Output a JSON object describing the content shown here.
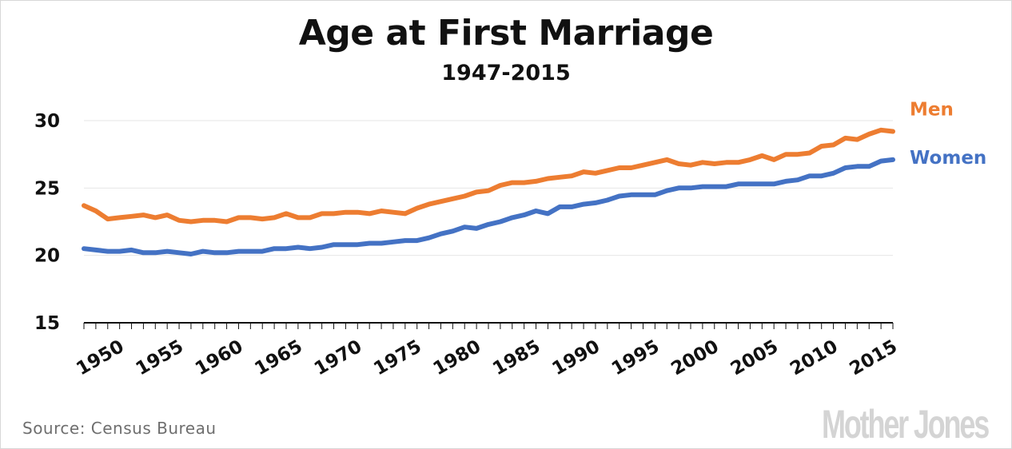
{
  "header": {
    "title": "Age at First Marriage",
    "subtitle": "1947-2015"
  },
  "footer": {
    "source": "Source: Census Bureau",
    "logo": "Mother Jones"
  },
  "colors": {
    "men": "#ED7D31",
    "women": "#4472C4",
    "gridline": "#e6e6e6",
    "axis": "#111111"
  },
  "chart_data": {
    "type": "line",
    "title": "Age at First Marriage",
    "subtitle": "1947-2015",
    "xlabel": "",
    "ylabel": "",
    "x": [
      1947,
      1948,
      1949,
      1950,
      1951,
      1952,
      1953,
      1954,
      1955,
      1956,
      1957,
      1958,
      1959,
      1960,
      1961,
      1962,
      1963,
      1964,
      1965,
      1966,
      1967,
      1968,
      1969,
      1970,
      1971,
      1972,
      1973,
      1974,
      1975,
      1976,
      1977,
      1978,
      1979,
      1980,
      1981,
      1982,
      1983,
      1984,
      1985,
      1986,
      1987,
      1988,
      1989,
      1990,
      1991,
      1992,
      1993,
      1994,
      1995,
      1996,
      1997,
      1998,
      1999,
      2000,
      2001,
      2002,
      2003,
      2004,
      2005,
      2006,
      2007,
      2008,
      2009,
      2010,
      2011,
      2012,
      2013,
      2014,
      2015
    ],
    "xticks": [
      "1950",
      "1955",
      "1960",
      "1965",
      "1970",
      "1975",
      "1980",
      "1985",
      "1990",
      "1995",
      "2000",
      "2005",
      "2010",
      "2015"
    ],
    "xtick_values": [
      1950,
      1955,
      1960,
      1965,
      1970,
      1975,
      1980,
      1985,
      1990,
      1995,
      2000,
      2005,
      2010,
      2015
    ],
    "ylim": [
      15,
      30
    ],
    "yticks": [
      15,
      20,
      25,
      30
    ],
    "grid": true,
    "legend": "right, at line ends",
    "series": [
      {
        "name": "Men",
        "color": "#ED7D31",
        "values": [
          23.7,
          23.3,
          22.7,
          22.8,
          22.9,
          23.0,
          22.8,
          23.0,
          22.6,
          22.5,
          22.6,
          22.6,
          22.5,
          22.8,
          22.8,
          22.7,
          22.8,
          23.1,
          22.8,
          22.8,
          23.1,
          23.1,
          23.2,
          23.2,
          23.1,
          23.3,
          23.2,
          23.1,
          23.5,
          23.8,
          24.0,
          24.2,
          24.4,
          24.7,
          24.8,
          25.2,
          25.4,
          25.4,
          25.5,
          25.7,
          25.8,
          25.9,
          26.2,
          26.1,
          26.3,
          26.5,
          26.5,
          26.7,
          26.9,
          27.1,
          26.8,
          26.7,
          26.9,
          26.8,
          26.9,
          26.9,
          27.1,
          27.4,
          27.1,
          27.5,
          27.5,
          27.6,
          28.1,
          28.2,
          28.7,
          28.6,
          29.0,
          29.3,
          29.2
        ]
      },
      {
        "name": "Women",
        "color": "#4472C4",
        "values": [
          20.5,
          20.4,
          20.3,
          20.3,
          20.4,
          20.2,
          20.2,
          20.3,
          20.2,
          20.1,
          20.3,
          20.2,
          20.2,
          20.3,
          20.3,
          20.3,
          20.5,
          20.5,
          20.6,
          20.5,
          20.6,
          20.8,
          20.8,
          20.8,
          20.9,
          20.9,
          21.0,
          21.1,
          21.1,
          21.3,
          21.6,
          21.8,
          22.1,
          22.0,
          22.3,
          22.5,
          22.8,
          23.0,
          23.3,
          23.1,
          23.6,
          23.6,
          23.8,
          23.9,
          24.1,
          24.4,
          24.5,
          24.5,
          24.5,
          24.8,
          25.0,
          25.0,
          25.1,
          25.1,
          25.1,
          25.3,
          25.3,
          25.3,
          25.3,
          25.5,
          25.6,
          25.9,
          25.9,
          26.1,
          26.5,
          26.6,
          26.6,
          27.0,
          27.1
        ]
      }
    ]
  }
}
